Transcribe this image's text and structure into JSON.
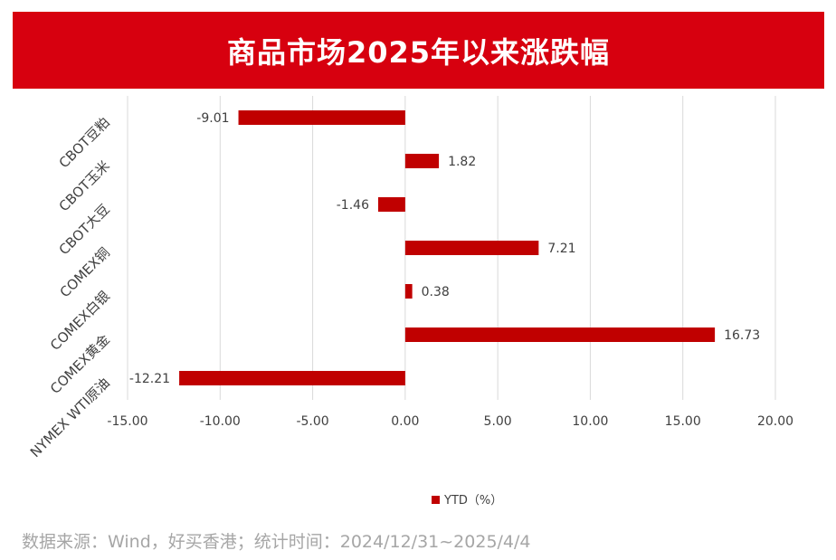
{
  "title": "商品市场2025年以来涨跌幅",
  "footer": "数据来源：Wind，好买香港；统计时间：2024/12/31~2025/4/4",
  "colors": {
    "title_bg": "#d7000f",
    "bar": "#c00000",
    "grid": "#d9d9d9",
    "text": "#404040"
  },
  "chart_data": {
    "type": "bar",
    "orientation": "horizontal",
    "categories": [
      "CBOT豆粕",
      "CBOT玉米",
      "CBOT大豆",
      "COMEX铜",
      "COMEX白银",
      "COMEX黄金",
      "NYMEX WTI原油"
    ],
    "series": [
      {
        "name": "YTD（%）",
        "values": [
          -9.01,
          1.82,
          -1.46,
          7.21,
          0.38,
          16.73,
          -12.21
        ]
      }
    ],
    "data_labels": [
      "-9.01",
      "1.82",
      "-1.46",
      "7.21",
      "0.38",
      "16.73",
      "-12.21"
    ],
    "xlim": [
      -15,
      20
    ],
    "xticks": [
      -15,
      -10,
      -5,
      0,
      5,
      10,
      15,
      20
    ],
    "xtick_labels": [
      "-15.00",
      "-10.00",
      "-5.00",
      "0.00",
      "5.00",
      "10.00",
      "15.00",
      "20.00"
    ],
    "grid": true,
    "legend": "bottom"
  }
}
